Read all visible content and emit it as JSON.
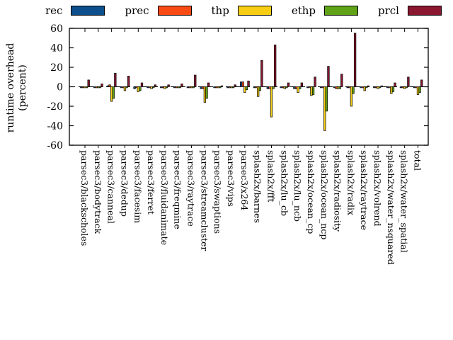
{
  "figure": {
    "background": "#ffffff"
  },
  "y_axis": {
    "label_line1": "runtime overhead",
    "label_line2": "(percent)",
    "ticks": [
      -60,
      -40,
      -20,
      0,
      20,
      40,
      60
    ]
  },
  "chart_data": {
    "type": "bar",
    "title": "",
    "xlabel": "",
    "ylabel": "runtime overhead (percent)",
    "ylim": [
      -60,
      60
    ],
    "yticks": [
      -60,
      -40,
      -20,
      0,
      20,
      40,
      60
    ],
    "grid": false,
    "zero_line": "dashed",
    "legend_position": "top",
    "categories": [
      "parsec3/blackscholes",
      "parsec3/bodytrack",
      "parsec3/canneal",
      "parsec3/dedup",
      "parsec3/facesim",
      "parsec3/ferret",
      "parsec3/fluidanimate",
      "parsec3/freqmine",
      "parsec3/raytrace",
      "parsec3/streamcluster",
      "parsec3/swaptions",
      "parsec3/vips",
      "parsec3/x264",
      "splash2x/barnes",
      "splash2x/fft",
      "splash2x/lu_cb",
      "splash2x/lu_ncb",
      "splash2x/ocean_cp",
      "splash2x/ocean_ncp",
      "splash2x/radiosity",
      "splash2x/radix",
      "splash2x/raytrace",
      "splash2x/volrend",
      "splash2x/water_nsquared",
      "splash2x/water_spatial",
      "total"
    ],
    "series": [
      {
        "name": "rec",
        "color": "#0d4f8c",
        "values": [
          -1,
          -1,
          1,
          -1,
          -2,
          -1,
          -1,
          -1,
          -1,
          -2,
          -1,
          -1,
          5,
          -1,
          -2,
          -1,
          -2,
          -1,
          -1,
          -1,
          -1,
          -1,
          -1,
          -1,
          -1,
          -1
        ]
      },
      {
        "name": "prec",
        "color": "#fb4b14",
        "values": [
          -1,
          -1,
          2,
          -1,
          -1,
          -1,
          -1,
          -1,
          -1,
          -2,
          -1,
          -1,
          5,
          -1,
          -2,
          -1,
          -2,
          -1,
          -1,
          -2,
          -1,
          -1,
          -1,
          -1,
          -1,
          -1
        ]
      },
      {
        "name": "thp",
        "color": "#f7ce13",
        "values": [
          -1,
          -1,
          -15,
          -4,
          -5,
          -2,
          -2,
          -1,
          -1,
          -16,
          -1,
          -1,
          -6,
          -10,
          -31,
          -2,
          -6,
          -9,
          -45,
          -2,
          -20,
          -4,
          -2,
          -7,
          -2,
          -8
        ]
      },
      {
        "name": "ethp",
        "color": "#60a317",
        "values": [
          -1,
          -1,
          -12,
          -1,
          -4,
          -1,
          -1,
          -1,
          -1,
          -12,
          -1,
          -1,
          -3,
          -4,
          -2,
          -1,
          -2,
          -8,
          -25,
          -2,
          -7,
          -1,
          -1,
          -5,
          -1,
          -6
        ]
      },
      {
        "name": "prcl",
        "color": "#8b1630",
        "values": [
          7,
          3,
          14,
          11,
          4,
          2,
          2,
          3,
          12,
          4,
          1,
          2,
          6,
          27,
          43,
          4,
          4,
          10,
          21,
          13,
          55,
          1,
          1,
          4,
          10,
          7
        ]
      }
    ]
  }
}
